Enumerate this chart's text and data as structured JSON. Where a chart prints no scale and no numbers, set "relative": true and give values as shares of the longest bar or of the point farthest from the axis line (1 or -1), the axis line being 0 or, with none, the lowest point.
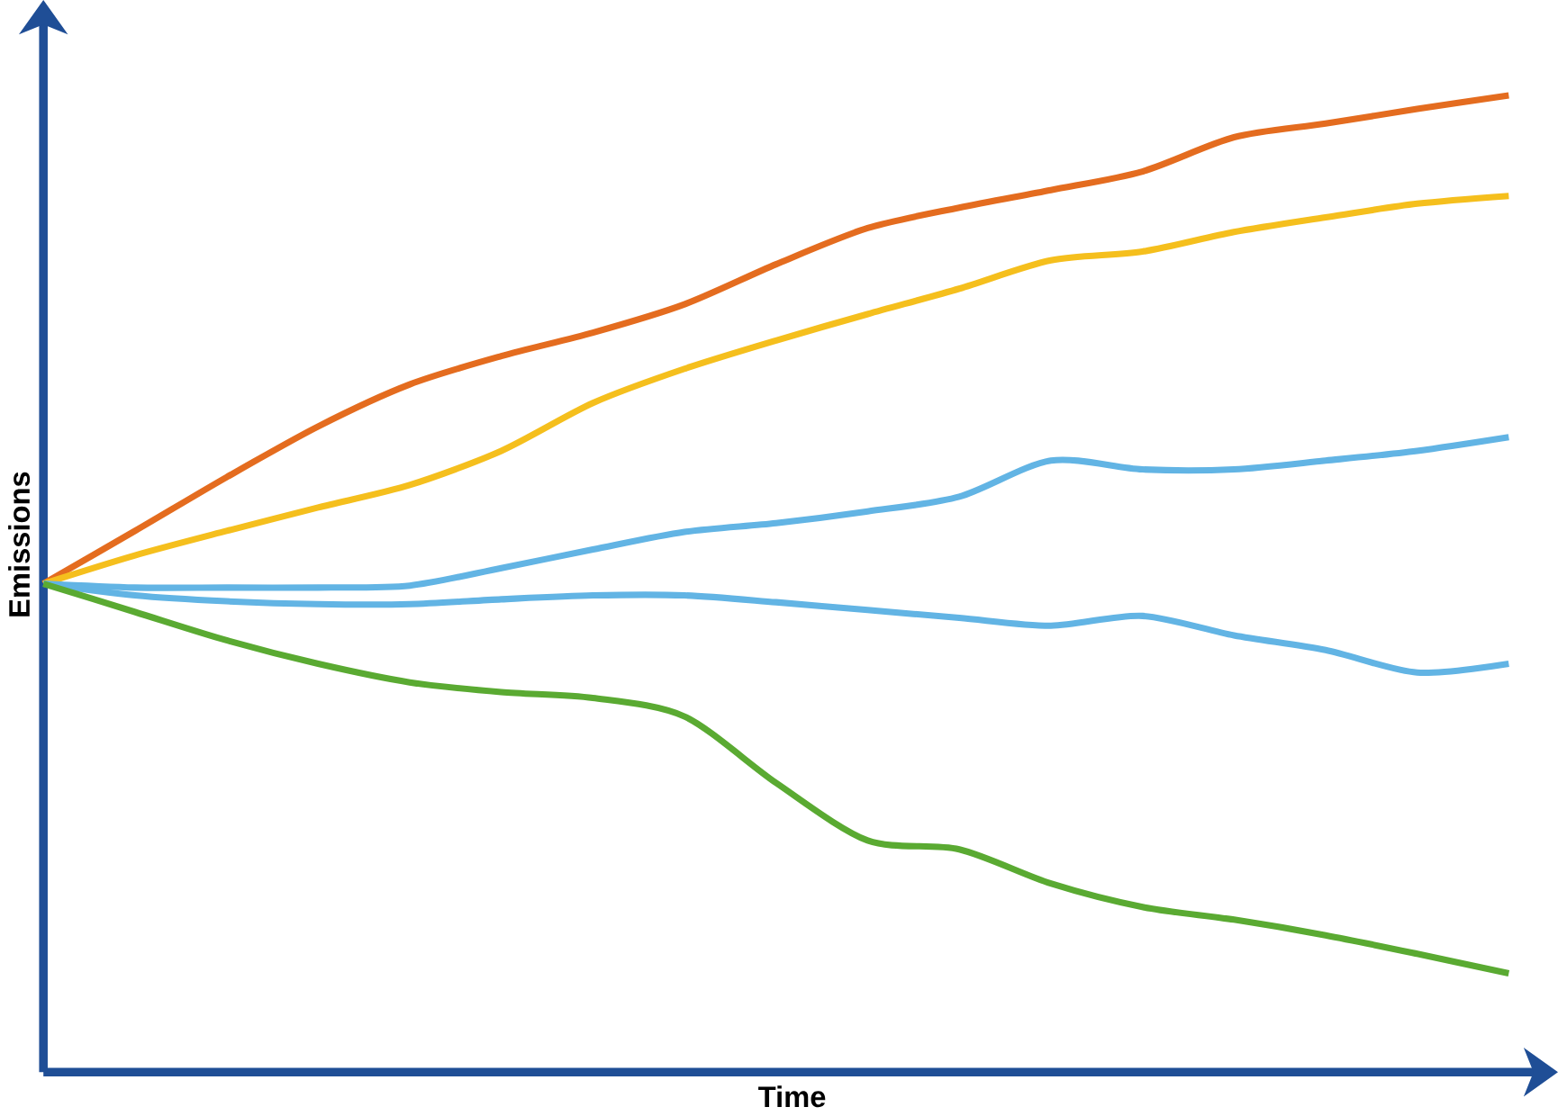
{
  "chart_data": {
    "type": "line",
    "relative": true,
    "xlabel": "Time",
    "ylabel": "Emissions",
    "categories": [
      null,
      null,
      null,
      null,
      null,
      null,
      null,
      null,
      null,
      null,
      null,
      null,
      null,
      null,
      null,
      null,
      null
    ],
    "series": [
      {
        "color": "#e46c1f",
        "values": [
          0.5,
          0.554,
          0.609,
          0.661,
          0.704,
          0.733,
          0.757,
          0.786,
          0.827,
          0.864,
          0.885,
          0.903,
          0.922,
          0.957,
          0.971,
          0.986,
          1
        ]
      },
      {
        "color": "#f5bf1d",
        "values": [
          0.5,
          0.529,
          0.554,
          0.578,
          0.601,
          0.636,
          0.685,
          0.72,
          0.749,
          0.776,
          0.802,
          0.831,
          0.84,
          0.86,
          0.875,
          0.889,
          0.897
        ]
      },
      {
        "color": "#62b4e4",
        "values": [
          0.5,
          0.496,
          0.496,
          0.496,
          0.498,
          0.516,
          0.535,
          0.553,
          0.562,
          0.574,
          0.589,
          0.626,
          0.617,
          0.617,
          0.626,
          0.636,
          0.65
        ]
      },
      {
        "color": "#62b4e4",
        "values": [
          0.5,
          0.488,
          0.482,
          0.479,
          0.479,
          0.484,
          0.488,
          0.488,
          0.481,
          0.473,
          0.465,
          0.457,
          0.467,
          0.447,
          0.432,
          0.409,
          0.418
        ]
      },
      {
        "color": "#5aaa32",
        "values": [
          0.5,
          0.471,
          0.442,
          0.418,
          0.399,
          0.389,
          0.383,
          0.364,
          0.296,
          0.237,
          0.228,
          0.193,
          0.169,
          0.156,
          0.14,
          0.121,
          0.101
        ]
      }
    ],
    "marker": "none",
    "line_style": "solid"
  }
}
